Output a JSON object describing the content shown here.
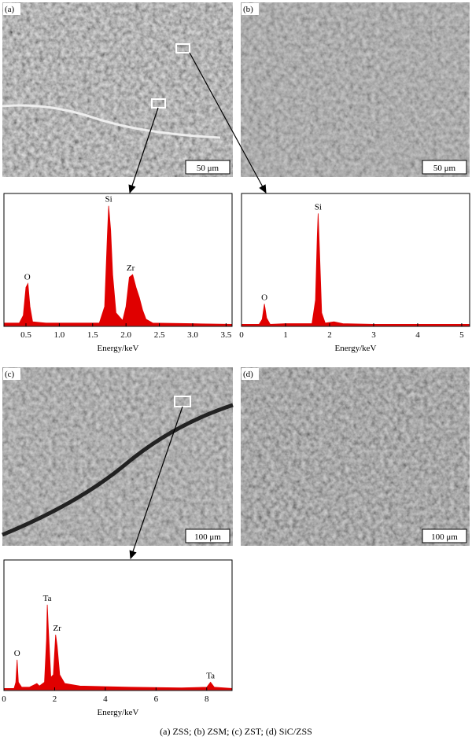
{
  "panels": [
    {
      "label": "(a)",
      "scale_bar": "50 μm"
    },
    {
      "label": "(b)",
      "scale_bar": "50 μm"
    },
    {
      "label": "(c)",
      "scale_bar": "100 μm"
    },
    {
      "label": "(d)",
      "scale_bar": "100 μm"
    }
  ],
  "chart_data": [
    {
      "type": "area",
      "xlabel": "Energy/keV",
      "color": "#e00000",
      "xlim": [
        0.17,
        3.59
      ],
      "ylim": [
        0,
        100
      ],
      "xticks": [
        0.5,
        {
          "value": 1,
          "label": "1.0"
        },
        1.5,
        {
          "value": 2,
          "label": "2.0"
        },
        2.5,
        {
          "value": 3,
          "label": "3.0"
        },
        3.5
      ],
      "x": [
        0.17,
        0.4,
        0.46,
        0.5,
        0.53,
        0.56,
        0.6,
        0.8,
        1.2,
        1.6,
        1.68,
        1.72,
        1.74,
        1.77,
        1.8,
        1.85,
        1.95,
        2.0,
        2.05,
        2.1,
        2.15,
        2.2,
        2.25,
        2.3,
        2.4,
        3.0,
        3.59
      ],
      "values": [
        2,
        2,
        8,
        30,
        33,
        15,
        3,
        2,
        2,
        2,
        15,
        70,
        94,
        75,
        40,
        10,
        4,
        15,
        38,
        40,
        30,
        22,
        12,
        5,
        2,
        1.5,
        1
      ],
      "annotations": [
        {
          "text": "O",
          "x": 0.52,
          "y": 33
        },
        {
          "text": "Si",
          "x": 1.74,
          "y": 94
        },
        {
          "text": "Zr",
          "x": 2.07,
          "y": 40
        }
      ]
    },
    {
      "type": "area",
      "xlabel": "Energy/keV",
      "color": "#e00000",
      "xlim": [
        0,
        5.18
      ],
      "ylim": [
        0,
        100
      ],
      "xticks": [
        0,
        1,
        2,
        3,
        4,
        5
      ],
      "x": [
        0,
        0.4,
        0.47,
        0.52,
        0.57,
        0.65,
        1.0,
        1.6,
        1.68,
        1.72,
        1.74,
        1.77,
        1.82,
        1.9,
        2.1,
        2.3,
        3.0,
        5.18
      ],
      "values": [
        1,
        1,
        5,
        17,
        6,
        1,
        1.5,
        1.5,
        20,
        70,
        88,
        60,
        10,
        2,
        3,
        1.5,
        1,
        1
      ],
      "annotations": [
        {
          "text": "O",
          "x": 0.52,
          "y": 17
        },
        {
          "text": "Si",
          "x": 1.74,
          "y": 88
        }
      ]
    },
    {
      "type": "area",
      "xlabel": "Energy/keV",
      "color": "#e00000",
      "xlim": [
        0,
        9
      ],
      "ylim": [
        0,
        100
      ],
      "xticks": [
        0,
        2,
        4,
        6,
        8
      ],
      "x": [
        0,
        0.4,
        0.47,
        0.52,
        0.57,
        0.7,
        1.0,
        1.3,
        1.4,
        1.6,
        1.68,
        1.71,
        1.75,
        1.85,
        1.95,
        2.04,
        2.1,
        2.2,
        2.4,
        3.0,
        5.0,
        7.0,
        8.0,
        8.15,
        8.3,
        9.0
      ],
      "values": [
        1,
        1,
        6,
        24,
        6,
        2,
        2,
        5,
        3,
        6,
        40,
        68,
        50,
        10,
        12,
        44,
        35,
        12,
        5,
        3,
        2,
        1.5,
        2,
        6,
        2,
        1
      ],
      "annotations": [
        {
          "text": "O",
          "x": 0.52,
          "y": 24
        },
        {
          "text": "Ta",
          "x": 1.71,
          "y": 68
        },
        {
          "text": "Zr",
          "x": 2.1,
          "y": 44
        },
        {
          "text": "Ta",
          "x": 8.15,
          "y": 6
        }
      ]
    }
  ],
  "caption": "(a)  ZSS;  (b) ZSM; (c) ZST; (d) SiC/ZSS"
}
